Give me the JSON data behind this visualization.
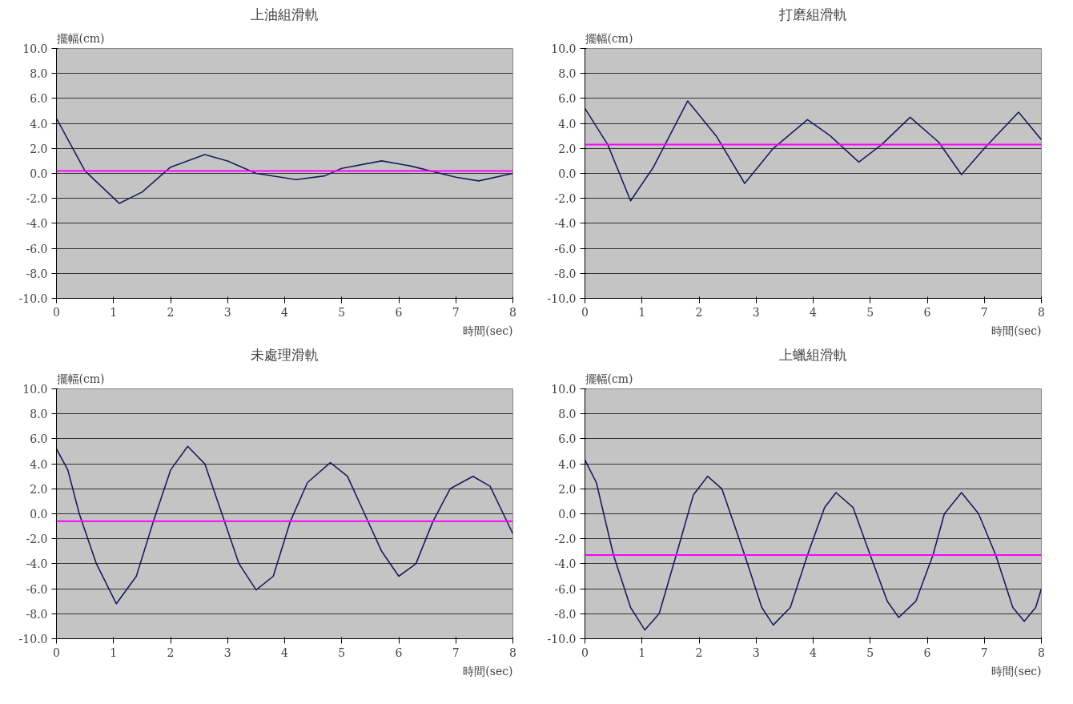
{
  "chart_data": [
    {
      "type": "line",
      "title": "上油組滑軌",
      "xlabel": "時間(sec)",
      "ylabel": "擺幅(cm)",
      "xlim": [
        0,
        8
      ],
      "xticks": [
        0,
        1,
        2,
        3,
        4,
        5,
        6,
        7,
        8
      ],
      "ylim": [
        -10,
        10
      ],
      "yticks": [
        {
          "value": -10,
          "label": "-10.0"
        },
        {
          "value": -8,
          "label": "-8.0"
        },
        {
          "value": -6,
          "label": "-6.0"
        },
        {
          "value": -4,
          "label": "-4.0"
        },
        {
          "value": -2,
          "label": "-2.0"
        },
        {
          "value": 0,
          "label": "0.0"
        },
        {
          "value": 2,
          "label": "2.0"
        },
        {
          "value": 4,
          "label": "4.0"
        },
        {
          "value": 6,
          "label": "6.0"
        },
        {
          "value": 8,
          "label": "8.0"
        },
        {
          "value": 10,
          "label": "10.0"
        }
      ],
      "grid": "y",
      "series": [
        {
          "color": "#1c1c5c",
          "x": [
            0,
            0.5,
            1.1,
            1.5,
            2.0,
            2.6,
            3.0,
            3.5,
            4.2,
            4.7,
            5.0,
            5.7,
            6.2,
            7.0,
            7.4,
            8.0
          ],
          "values": [
            4.4,
            0.2,
            -2.4,
            -1.5,
            0.5,
            1.5,
            1.0,
            0.0,
            -0.5,
            -0.2,
            0.4,
            1.0,
            0.6,
            -0.3,
            -0.6,
            0.0
          ]
        }
      ],
      "ref_lines": [
        {
          "axis": "y",
          "value": 0.2,
          "color": "#ff00ff"
        }
      ]
    },
    {
      "type": "line",
      "title": "打磨組滑軌",
      "xlabel": "時間(sec)",
      "ylabel": "擺幅(cm)",
      "xlim": [
        0,
        8
      ],
      "xticks": [
        0,
        1,
        2,
        3,
        4,
        5,
        6,
        7,
        8
      ],
      "ylim": [
        -10,
        10
      ],
      "yticks": [
        {
          "value": -10,
          "label": "-10.0"
        },
        {
          "value": -8,
          "label": "-8.0"
        },
        {
          "value": -6,
          "label": "-6.0"
        },
        {
          "value": -4,
          "label": "-4.0"
        },
        {
          "value": -2,
          "label": "-2.0"
        },
        {
          "value": 0,
          "label": "0.0"
        },
        {
          "value": 2,
          "label": "2.0"
        },
        {
          "value": 4,
          "label": "4.0"
        },
        {
          "value": 6,
          "label": "6.0"
        },
        {
          "value": 8,
          "label": "8.0"
        },
        {
          "value": 10,
          "label": "10.0"
        }
      ],
      "grid": "y",
      "series": [
        {
          "color": "#1c1c5c",
          "x": [
            0,
            0.4,
            0.8,
            1.2,
            1.8,
            2.3,
            2.8,
            3.3,
            3.9,
            4.3,
            4.8,
            5.2,
            5.7,
            6.2,
            6.6,
            7.0,
            7.6,
            8.0
          ],
          "values": [
            5.2,
            2.3,
            -2.2,
            0.5,
            5.8,
            3.0,
            -0.8,
            2.0,
            4.3,
            3.0,
            0.9,
            2.3,
            4.5,
            2.5,
            -0.1,
            2.0,
            4.9,
            2.7
          ]
        }
      ],
      "ref_lines": [
        {
          "axis": "y",
          "value": 2.3,
          "color": "#ff00ff"
        }
      ]
    },
    {
      "type": "line",
      "title": "未處理滑軌",
      "xlabel": "時間(sec)",
      "ylabel": "擺幅(cm)",
      "xlim": [
        0,
        8
      ],
      "xticks": [
        0,
        1,
        2,
        3,
        4,
        5,
        6,
        7,
        8
      ],
      "ylim": [
        -10,
        10
      ],
      "yticks": [
        {
          "value": -10,
          "label": "-10.0"
        },
        {
          "value": -8,
          "label": "-8.0"
        },
        {
          "value": -6,
          "label": "-6.0"
        },
        {
          "value": -4,
          "label": "-4.0"
        },
        {
          "value": -2,
          "label": "-2.0"
        },
        {
          "value": 0,
          "label": "0.0"
        },
        {
          "value": 2,
          "label": "2.0"
        },
        {
          "value": 4,
          "label": "4.0"
        },
        {
          "value": 6,
          "label": "6.0"
        },
        {
          "value": 8,
          "label": "8.0"
        },
        {
          "value": 10,
          "label": "10.0"
        }
      ],
      "grid": "y",
      "series": [
        {
          "color": "#1c1c5c",
          "x": [
            0,
            0.2,
            0.4,
            0.7,
            1.05,
            1.4,
            1.7,
            2.0,
            2.3,
            2.6,
            2.9,
            3.2,
            3.5,
            3.8,
            4.1,
            4.4,
            4.8,
            5.1,
            5.4,
            5.7,
            6.0,
            6.3,
            6.6,
            6.9,
            7.3,
            7.6,
            8.0
          ],
          "values": [
            5.2,
            3.5,
            0,
            -4,
            -7.2,
            -5,
            -0.6,
            3.5,
            5.4,
            4,
            0,
            -4,
            -6.1,
            -5,
            -0.6,
            2.5,
            4.1,
            3,
            0,
            -3,
            -5.0,
            -4,
            -0.6,
            2,
            3.0,
            2.2,
            -1.6
          ]
        }
      ],
      "ref_lines": [
        {
          "axis": "y",
          "value": -0.6,
          "color": "#ff00ff"
        }
      ]
    },
    {
      "type": "line",
      "title": "上蠟組滑軌",
      "xlabel": "時間(sec)",
      "ylabel": "擺幅(cm)",
      "xlim": [
        0,
        8
      ],
      "xticks": [
        0,
        1,
        2,
        3,
        4,
        5,
        6,
        7,
        8
      ],
      "ylim": [
        -10,
        10
      ],
      "yticks": [
        {
          "value": -10,
          "label": "-10.0"
        },
        {
          "value": -8,
          "label": "-8.0"
        },
        {
          "value": -6,
          "label": "-6.0"
        },
        {
          "value": -4,
          "label": "-4.0"
        },
        {
          "value": -2,
          "label": "-2.0"
        },
        {
          "value": 0,
          "label": "0.0"
        },
        {
          "value": 2,
          "label": "2.0"
        },
        {
          "value": 4,
          "label": "4.0"
        },
        {
          "value": 6,
          "label": "6.0"
        },
        {
          "value": 8,
          "label": "8.0"
        },
        {
          "value": 10,
          "label": "10.0"
        }
      ],
      "grid": "y",
      "series": [
        {
          "color": "#1c1c5c",
          "x": [
            0,
            0.2,
            0.5,
            0.8,
            1.05,
            1.3,
            1.6,
            1.9,
            2.15,
            2.4,
            2.8,
            3.1,
            3.3,
            3.6,
            3.9,
            4.2,
            4.4,
            4.7,
            5.0,
            5.3,
            5.5,
            5.8,
            6.1,
            6.3,
            6.6,
            6.9,
            7.2,
            7.5,
            7.7,
            7.9,
            8.0
          ],
          "values": [
            4.3,
            2.5,
            -3.3,
            -7.5,
            -9.3,
            -8,
            -3.3,
            1.5,
            3.0,
            2,
            -3.3,
            -7.5,
            -8.9,
            -7.5,
            -3.3,
            0.5,
            1.7,
            0.5,
            -3.3,
            -7,
            -8.3,
            -7,
            -3.3,
            0,
            1.7,
            0,
            -3.3,
            -7.5,
            -8.6,
            -7.5,
            -6.0
          ]
        }
      ],
      "ref_lines": [
        {
          "axis": "y",
          "value": -3.3,
          "color": "#ff00ff"
        }
      ]
    }
  ]
}
